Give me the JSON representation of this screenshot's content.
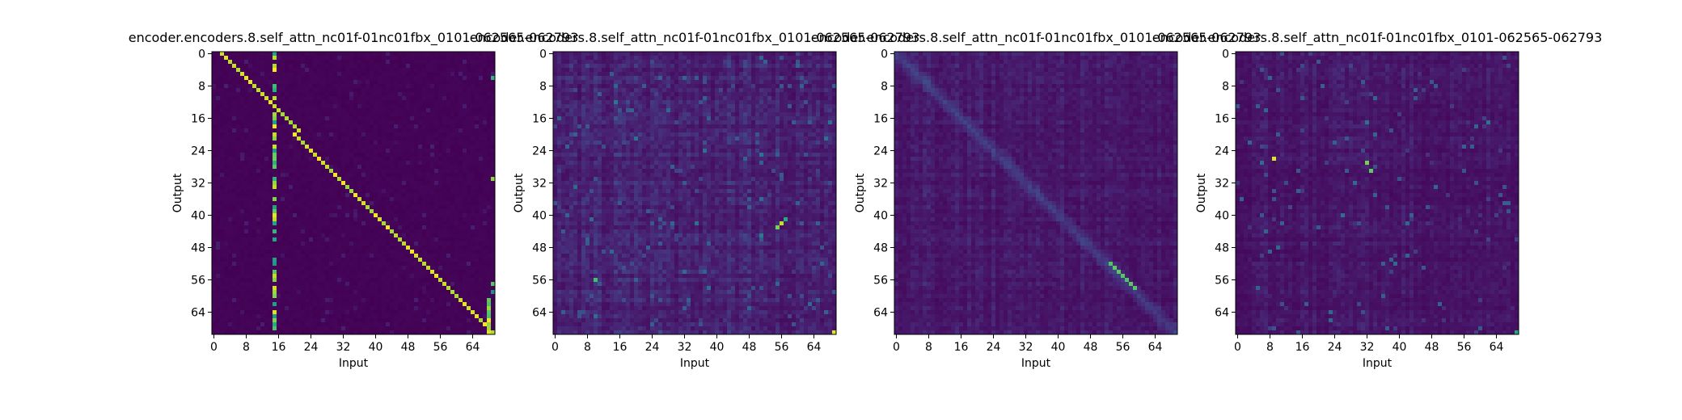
{
  "figure": {
    "background": "#ffffff",
    "colormap": "viridis"
  },
  "chart_data": [
    {
      "type": "heatmap",
      "title": "encoder.encoders.8.self_attn_nc01f-01nc01fbx_0101-062565-062793",
      "xlabel": "Input",
      "ylabel": "Output",
      "size": 70,
      "xticks": [
        0,
        8,
        16,
        24,
        32,
        40,
        48,
        56,
        64
      ],
      "yticks": [
        0,
        8,
        16,
        24,
        32,
        40,
        48,
        56,
        64
      ],
      "vrange": [
        0,
        1
      ],
      "pattern": "diagonal-sparse",
      "seed": 11
    },
    {
      "type": "heatmap",
      "title": "encoder.encoders.8.self_attn_nc01f-01nc01fbx_0101-062565-062793",
      "xlabel": "Input",
      "ylabel": "Output",
      "size": 70,
      "xticks": [
        0,
        8,
        16,
        24,
        32,
        40,
        48,
        56,
        64
      ],
      "yticks": [
        0,
        8,
        16,
        24,
        32,
        40,
        48,
        56,
        64
      ],
      "vrange": [
        0,
        1
      ],
      "pattern": "diffuse",
      "seed": 23
    },
    {
      "type": "heatmap",
      "title": "encoder.encoders.8.self_attn_nc01f-01nc01fbx_0101-062565-062793",
      "xlabel": "Input",
      "ylabel": "Output",
      "size": 70,
      "xticks": [
        0,
        8,
        16,
        24,
        32,
        40,
        48,
        56,
        64
      ],
      "yticks": [
        0,
        8,
        16,
        24,
        32,
        40,
        48,
        56,
        64
      ],
      "vrange": [
        0,
        1
      ],
      "pattern": "faint-diagonal",
      "seed": 37
    },
    {
      "type": "heatmap",
      "title": "encoder.encoders.8.self_attn_nc01f-01nc01fbx_0101-062565-062793",
      "xlabel": "Input",
      "ylabel": "Output",
      "size": 70,
      "xticks": [
        0,
        8,
        16,
        24,
        32,
        40,
        48,
        56,
        64
      ],
      "yticks": [
        0,
        8,
        16,
        24,
        32,
        40,
        48,
        56,
        64
      ],
      "vrange": [
        0,
        1
      ],
      "pattern": "speckled",
      "seed": 53
    }
  ]
}
